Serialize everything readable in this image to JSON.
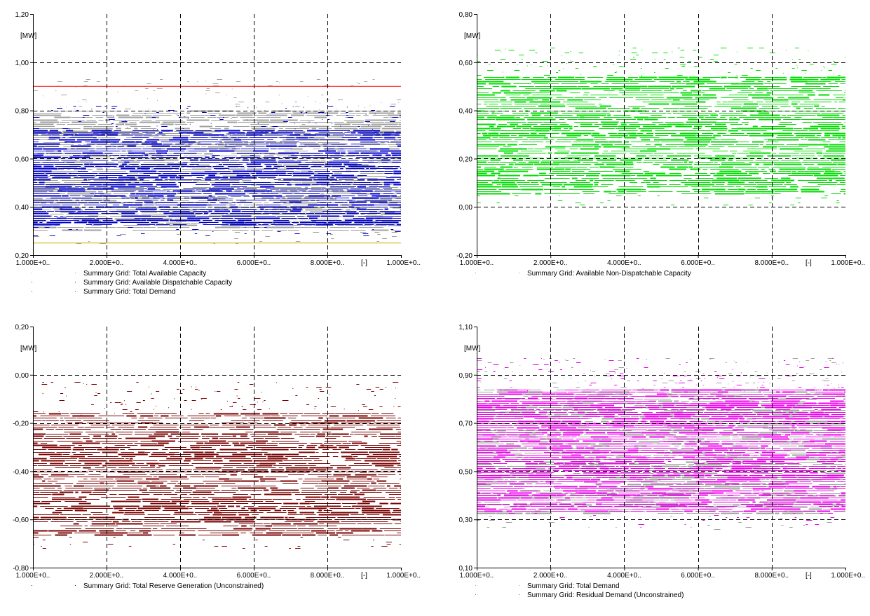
{
  "chart_data": [
    {
      "type": "scatter",
      "ylabel": "[MW]",
      "x_unit_label": "[-]",
      "ylim": [
        0.2,
        1.2
      ],
      "y_ticks": [
        "0,20",
        "0,40",
        "0,60",
        "0,80",
        "1,00",
        "1,20"
      ],
      "x_ticks": [
        "1.000E+0..",
        "2.000E+0..",
        "4.000E+0..",
        "6.000E+0..",
        "8.000E+0..",
        "1.000E+0.."
      ],
      "grid": true,
      "legend_position": "bottom-left",
      "series": [
        {
          "name": "Summary Grid: Total Available Capacity",
          "color": "#a0a0a0",
          "mode": "scatter-band",
          "values": [
            0.25,
            0.93
          ]
        },
        {
          "name": "Summary Grid: Available Dispatchable Capacity",
          "color": "#0000cc",
          "mode": "scatter-band",
          "values": [
            0.28,
            0.82
          ]
        },
        {
          "name": "Summary Grid: Total Demand",
          "color": "#ff0000",
          "mode": "line",
          "values": [
            0.9,
            0.9
          ]
        }
      ],
      "extra_lines": [
        {
          "color": "#d0b000",
          "values": [
            0.25,
            0.25
          ]
        }
      ]
    },
    {
      "type": "scatter",
      "ylabel": "[MW]",
      "x_unit_label": "[-]",
      "ylim": [
        -0.2,
        0.8
      ],
      "y_ticks": [
        "-0,20",
        "0,00",
        "0,20",
        "0,40",
        "0,60",
        "0,80"
      ],
      "x_ticks": [
        "1.000E+0..",
        "2.000E+0..",
        "4.000E+0..",
        "6.000E+0..",
        "8.000E+0..",
        "1.000E+0.."
      ],
      "grid": true,
      "legend_position": "bottom-left",
      "series": [
        {
          "name": "Summary Grid: Available Non-Dispatchable Capacity",
          "color": "#00dd00",
          "mode": "scatter-band",
          "values": [
            0.0,
            0.66
          ]
        }
      ]
    },
    {
      "type": "scatter",
      "ylabel": "[MW]",
      "x_unit_label": "[-]",
      "ylim": [
        -0.8,
        0.2
      ],
      "y_ticks": [
        "-0,80",
        "-0,60",
        "-0,40",
        "-0,20",
        "0,00",
        "0,20"
      ],
      "x_ticks": [
        "1.000E+0..",
        "2.000E+0..",
        "4.000E+0..",
        "6.000E+0..",
        "8.000E+0..",
        "1.000E+0.."
      ],
      "grid": true,
      "legend_position": "bottom-left",
      "series": [
        {
          "name": "Summary Grid: Total Reserve Generation (Unconstrained)",
          "color": "#7a0000",
          "mode": "scatter-band",
          "values": [
            -0.72,
            -0.03
          ]
        }
      ]
    },
    {
      "type": "scatter",
      "ylabel": "[MW]",
      "x_unit_label": "[-]",
      "ylim": [
        0.1,
        1.1
      ],
      "y_ticks": [
        "0,10",
        "0,30",
        "0,50",
        "0,70",
        "0,90",
        "1,10"
      ],
      "x_ticks": [
        "1.000E+0..",
        "2.000E+0..",
        "4.000E+0..",
        "6.000E+0..",
        "8.000E+0..",
        "1.000E+0.."
      ],
      "grid": true,
      "legend_position": "bottom-left",
      "series": [
        {
          "name": "Summary Grid: Total Demand",
          "color": "#a0a0a0",
          "mode": "scatter-band",
          "values": [
            0.26,
            0.97
          ]
        },
        {
          "name": "Summary Grid: Residual Demand (Unconstrained)",
          "color": "#ee00ee",
          "mode": "scatter-band",
          "values": [
            0.28,
            0.97
          ]
        }
      ]
    }
  ]
}
